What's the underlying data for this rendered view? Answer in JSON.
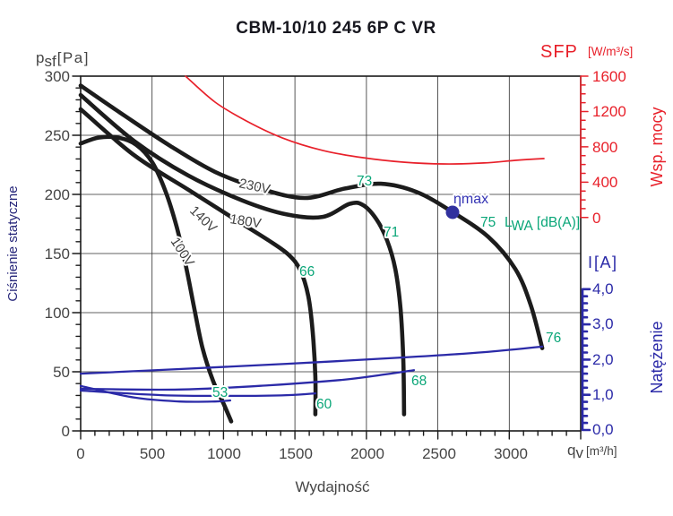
{
  "title": "CBM-10/10 245 6P C VR",
  "colors": {
    "pressure_curve": "#1c1c1c",
    "sfp_curve": "#e8202a",
    "current_curve": "#2b2aa8",
    "noise_label": "#0aa678",
    "eta_max": "#3434b4",
    "axis_text": "#454545",
    "pressure_axis_title": "#26267a"
  },
  "axes": {
    "pressure": {
      "sym": "p",
      "sym_sub": "sf",
      "unit": "[Pa]",
      "title": "Ciśnienie statyczne",
      "ticks": [
        "300",
        "250",
        "200",
        "150",
        "100",
        "50",
        "0"
      ]
    },
    "flow": {
      "title": "Wydajność",
      "sym": "q",
      "sym_sub": "v",
      "unit": "[m³/h]",
      "ticks": [
        "0",
        "500",
        "1000",
        "1500",
        "2000",
        "2500",
        "3000"
      ]
    },
    "sfp": {
      "sym": "SFP",
      "unit": "[W/m³/s]",
      "title": "Wsp. mocy",
      "ticks": [
        "1600",
        "1200",
        "800",
        "400",
        "0"
      ]
    },
    "current": {
      "sym": "I",
      "unit": "[A]",
      "title": "Natężenie",
      "ticks": [
        "4,0",
        "3,0",
        "2,0",
        "1,0",
        "0,0"
      ]
    }
  },
  "labels": {
    "v230": "230V",
    "v180": "180V",
    "v140": "140V",
    "v100": "100V",
    "eta_max": "ηmax",
    "noise_73": "73",
    "noise_71": "71",
    "noise_66": "66",
    "noise_53": "53",
    "noise_60": "60",
    "noise_68": "68",
    "noise_76": "76",
    "noise_75": "75",
    "lwa_sym": "L",
    "lwa_sub": "WA",
    "lwa_unit": "[dB(A)]"
  },
  "chart_data": {
    "type": "line",
    "title": "CBM-10/10 245 6P C VR",
    "xlabel": "Wydajność",
    "x_unit": "qv [m³/h]",
    "xlim": [
      0,
      3500
    ],
    "grid": true,
    "axes": {
      "pressure": {
        "label": "Ciśnienie statyczne",
        "unit": "psf [Pa]",
        "range": [
          0,
          300
        ]
      },
      "sfp": {
        "label": "Wsp. mocy",
        "unit": "SFP [W/m³/s]",
        "range": [
          0,
          1600
        ]
      },
      "current": {
        "label": "Natężenie",
        "unit": "I [A]",
        "range": [
          0,
          4.0
        ]
      }
    },
    "series": [
      {
        "name": "230V pressure",
        "axis": "pressure",
        "q": [
          0,
          314,
          627,
          941,
          1254,
          1568,
          1851,
          2101,
          2352,
          2603,
          2854,
          3042,
          3149,
          3231
        ],
        "v": [
          292,
          266,
          241,
          219,
          205,
          197,
          205,
          209,
          202,
          185,
          164,
          137,
          107,
          70
        ]
      },
      {
        "name": "180V pressure",
        "axis": "pressure",
        "q": [
          0,
          376,
          753,
          1129,
          1443,
          1694,
          1882,
          1976,
          2070,
          2145,
          2202,
          2239,
          2258,
          2264
        ],
        "v": [
          284,
          245,
          216,
          195,
          183,
          181,
          192,
          191,
          179,
          161,
          137,
          103,
          61,
          14
        ]
      },
      {
        "name": "140V pressure",
        "axis": "pressure",
        "q": [
          0,
          376,
          753,
          1066,
          1317,
          1455,
          1537,
          1593,
          1624,
          1643,
          1643
        ],
        "v": [
          272,
          233,
          204,
          180,
          161,
          149,
          136,
          114,
          84,
          46,
          14
        ]
      },
      {
        "name": "100V pressure",
        "axis": "pressure",
        "q": [
          0,
          125,
          263,
          389,
          502,
          596,
          671,
          734,
          790,
          853,
          928,
          1004,
          1054
        ],
        "v": [
          243,
          248,
          248,
          242,
          227,
          202,
          173,
          141,
          107,
          70,
          42,
          22,
          8
        ]
      },
      {
        "name": "SFP",
        "axis": "sfp",
        "q": [
          734,
          941,
          1160,
          1411,
          1694,
          1976,
          2258,
          2540,
          2823,
          3042,
          3243
        ],
        "v": [
          1600,
          1306,
          1093,
          901,
          759,
          677,
          627,
          606,
          617,
          647,
          667
        ]
      },
      {
        "name": "230V current",
        "axis": "current",
        "q": [
          0,
          690,
          1443,
          2258,
          2823,
          3231
        ],
        "v": [
          1.6,
          1.73,
          1.88,
          2.06,
          2.21,
          2.37
        ]
      },
      {
        "name": "180V current",
        "axis": "current",
        "q": [
          0,
          690,
          1317,
          1819,
          2133,
          2333
        ],
        "v": [
          1.17,
          1.15,
          1.27,
          1.42,
          1.58,
          1.7
        ]
      },
      {
        "name": "140V current",
        "axis": "current",
        "q": [
          0,
          565,
          1066,
          1443,
          1643
        ],
        "v": [
          1.12,
          0.99,
          0.97,
          0.99,
          1.04
        ]
      },
      {
        "name": "100V current",
        "axis": "current",
        "q": [
          0,
          376,
          690,
          941,
          1047
        ],
        "v": [
          1.25,
          0.92,
          0.81,
          0.81,
          0.84
        ]
      }
    ],
    "annotations": [
      {
        "text": "ηmax",
        "q": 2600,
        "p": 185,
        "type": "point"
      },
      {
        "text": "75 LWA [dB(A)]",
        "q": 2800,
        "p": 172
      },
      {
        "text": "73",
        "q": 1930,
        "p": 207
      },
      {
        "text": "71",
        "q": 2120,
        "p": 164
      },
      {
        "text": "66",
        "q": 1530,
        "p": 131
      },
      {
        "text": "53",
        "q": 920,
        "p": 29
      },
      {
        "text": "60",
        "q": 1650,
        "p": 19
      },
      {
        "text": "68",
        "q": 2310,
        "p": 39
      },
      {
        "text": "76",
        "q": 3255,
        "p": 74
      }
    ]
  }
}
